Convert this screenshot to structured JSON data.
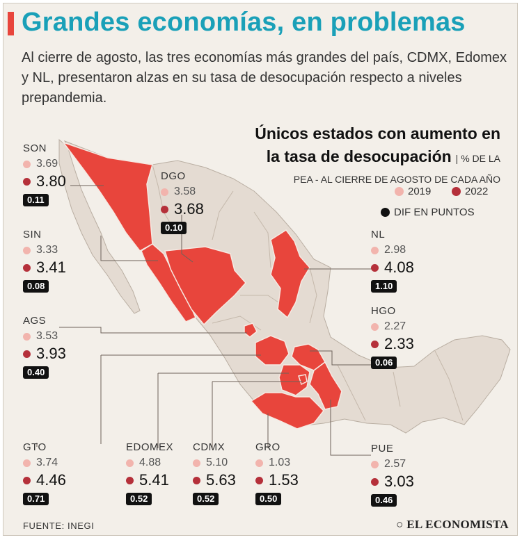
{
  "title": "Grandes economías, en problemas",
  "subtitle": "Al cierre de agosto, las tres economías más grandes del país, CDMX, Edomex y NL, presentaron alzas en su tasa de desocupación respecto a niveles prepandemia.",
  "side_title_line1": "Únicos estados con aumento en",
  "side_title_line2": "la tasa de desocupación",
  "side_sub_a": "| % DE LA",
  "side_sub_b": "PEA - AL CIERRE DE AGOSTO DE CADA AÑO",
  "legend": {
    "y2019": "2019",
    "y2022": "2022",
    "diff": "DIF EN PUNTOS"
  },
  "colors": {
    "title": "#1aa0b8",
    "accent": "#e8453c",
    "dot2019": "#f2b4ad",
    "dot2022": "#b5303a",
    "map_base": "#e4dbd2",
    "highlight": "#e8453c"
  },
  "states": {
    "son": {
      "name": "SON",
      "v2019": "3.69",
      "v2022": "3.80",
      "diff": "0.11"
    },
    "dgo": {
      "name": "DGO",
      "v2019": "3.58",
      "v2022": "3.68",
      "diff": "0.10"
    },
    "sin": {
      "name": "SIN",
      "v2019": "3.33",
      "v2022": "3.41",
      "diff": "0.08"
    },
    "nl": {
      "name": "NL",
      "v2019": "2.98",
      "v2022": "4.08",
      "diff": "1.10"
    },
    "hgo": {
      "name": "HGO",
      "v2019": "2.27",
      "v2022": "2.33",
      "diff": "0.06"
    },
    "ags": {
      "name": "AGS",
      "v2019": "3.53",
      "v2022": "3.93",
      "diff": "0.40"
    },
    "gto": {
      "name": "GTO",
      "v2019": "3.74",
      "v2022": "4.46",
      "diff": "0.71"
    },
    "edomex": {
      "name": "EDOMEX",
      "v2019": "4.88",
      "v2022": "5.41",
      "diff": "0.52"
    },
    "cdmx": {
      "name": "CDMX",
      "v2019": "5.10",
      "v2022": "5.63",
      "diff": "0.52"
    },
    "gro": {
      "name": "GRO",
      "v2019": "1.03",
      "v2022": "1.53",
      "diff": "0.50"
    },
    "pue": {
      "name": "PUE",
      "v2019": "2.57",
      "v2022": "3.03",
      "diff": "0.46"
    }
  },
  "source": "FUENTE: INEGI",
  "brand": "EL ECONOMISTA"
}
